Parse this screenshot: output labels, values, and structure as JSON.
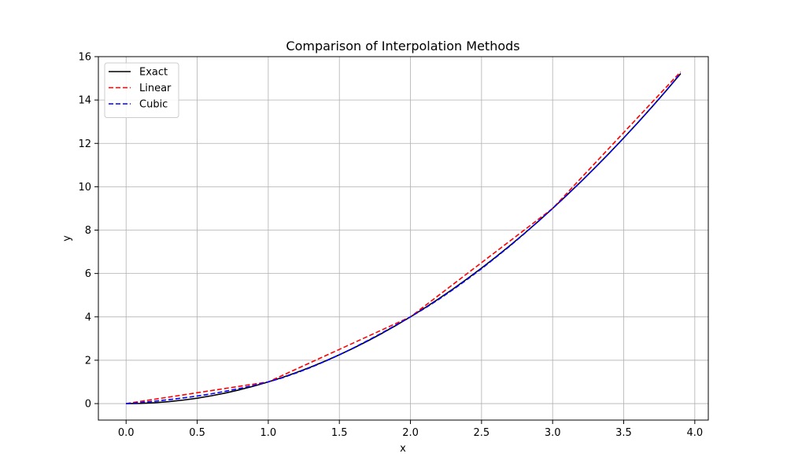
{
  "chart_data": {
    "type": "line",
    "title": "Comparison of Interpolation Methods",
    "xlabel": "x",
    "ylabel": "y",
    "xlim": [
      -0.195,
      4.095
    ],
    "ylim": [
      -0.76,
      16.0
    ],
    "xticks": [
      0.0,
      0.5,
      1.0,
      1.5,
      2.0,
      2.5,
      3.0,
      3.5,
      4.0
    ],
    "xtick_labels": [
      "0.0",
      "0.5",
      "1.0",
      "1.5",
      "2.0",
      "2.5",
      "3.0",
      "3.5",
      "4.0"
    ],
    "yticks": [
      0,
      2,
      4,
      6,
      8,
      10,
      12,
      14,
      16
    ],
    "ytick_labels": [
      "0",
      "2",
      "4",
      "6",
      "8",
      "10",
      "12",
      "14",
      "16"
    ],
    "grid": true,
    "legend_position": "top-left",
    "series": [
      {
        "name": "Exact",
        "color": "#000000",
        "style": "solid",
        "x": [
          0.0,
          0.1,
          0.2,
          0.3,
          0.4,
          0.5,
          0.6,
          0.7,
          0.8,
          0.9,
          1.0,
          1.1,
          1.2,
          1.3,
          1.4,
          1.5,
          1.6,
          1.7,
          1.8,
          1.9,
          2.0,
          2.1,
          2.2,
          2.3,
          2.4,
          2.5,
          2.6,
          2.7,
          2.8,
          2.9,
          3.0,
          3.1,
          3.2,
          3.3,
          3.4,
          3.5,
          3.6,
          3.7,
          3.8,
          3.9
        ],
        "y": [
          0.0,
          0.01,
          0.04,
          0.09,
          0.16,
          0.25,
          0.36,
          0.49,
          0.64,
          0.81,
          1.0,
          1.21,
          1.44,
          1.69,
          1.96,
          2.25,
          2.56,
          2.89,
          3.24,
          3.61,
          4.0,
          4.41,
          4.84,
          5.29,
          5.76,
          6.25,
          6.76,
          7.29,
          7.84,
          8.41,
          9.0,
          9.61,
          10.24,
          10.89,
          11.56,
          12.25,
          12.96,
          13.69,
          14.44,
          15.21
        ]
      },
      {
        "name": "Linear",
        "color": "#ff0000",
        "style": "dashed",
        "x": [
          0.0,
          1.0,
          2.0,
          3.0,
          3.9
        ],
        "y": [
          0.0,
          1.0,
          4.0,
          9.0,
          15.3
        ]
      },
      {
        "name": "Cubic",
        "color": "#0000ff",
        "style": "dashed",
        "x": [
          0.0,
          0.1,
          0.2,
          0.3,
          0.4,
          0.5,
          0.6,
          0.7,
          0.8,
          0.9,
          1.0,
          1.1,
          1.2,
          1.3,
          1.4,
          1.5,
          1.6,
          1.7,
          1.8,
          1.9,
          2.0,
          2.1,
          2.2,
          2.3,
          2.4,
          2.5,
          2.6,
          2.7,
          2.8,
          2.9,
          3.0,
          3.1,
          3.2,
          3.3,
          3.4,
          3.5,
          3.6,
          3.7,
          3.8,
          3.9
        ],
        "y": [
          0.0,
          0.05,
          0.11,
          0.18,
          0.26,
          0.35,
          0.45,
          0.57,
          0.7,
          0.84,
          1.0,
          1.19,
          1.42,
          1.67,
          1.95,
          2.25,
          2.57,
          2.91,
          3.26,
          3.63,
          4.0,
          4.39,
          4.81,
          5.26,
          5.73,
          6.22,
          6.74,
          7.27,
          7.83,
          8.41,
          9.0,
          9.61,
          10.24,
          10.89,
          11.56,
          12.25,
          12.96,
          13.69,
          14.44,
          15.24
        ]
      }
    ]
  }
}
